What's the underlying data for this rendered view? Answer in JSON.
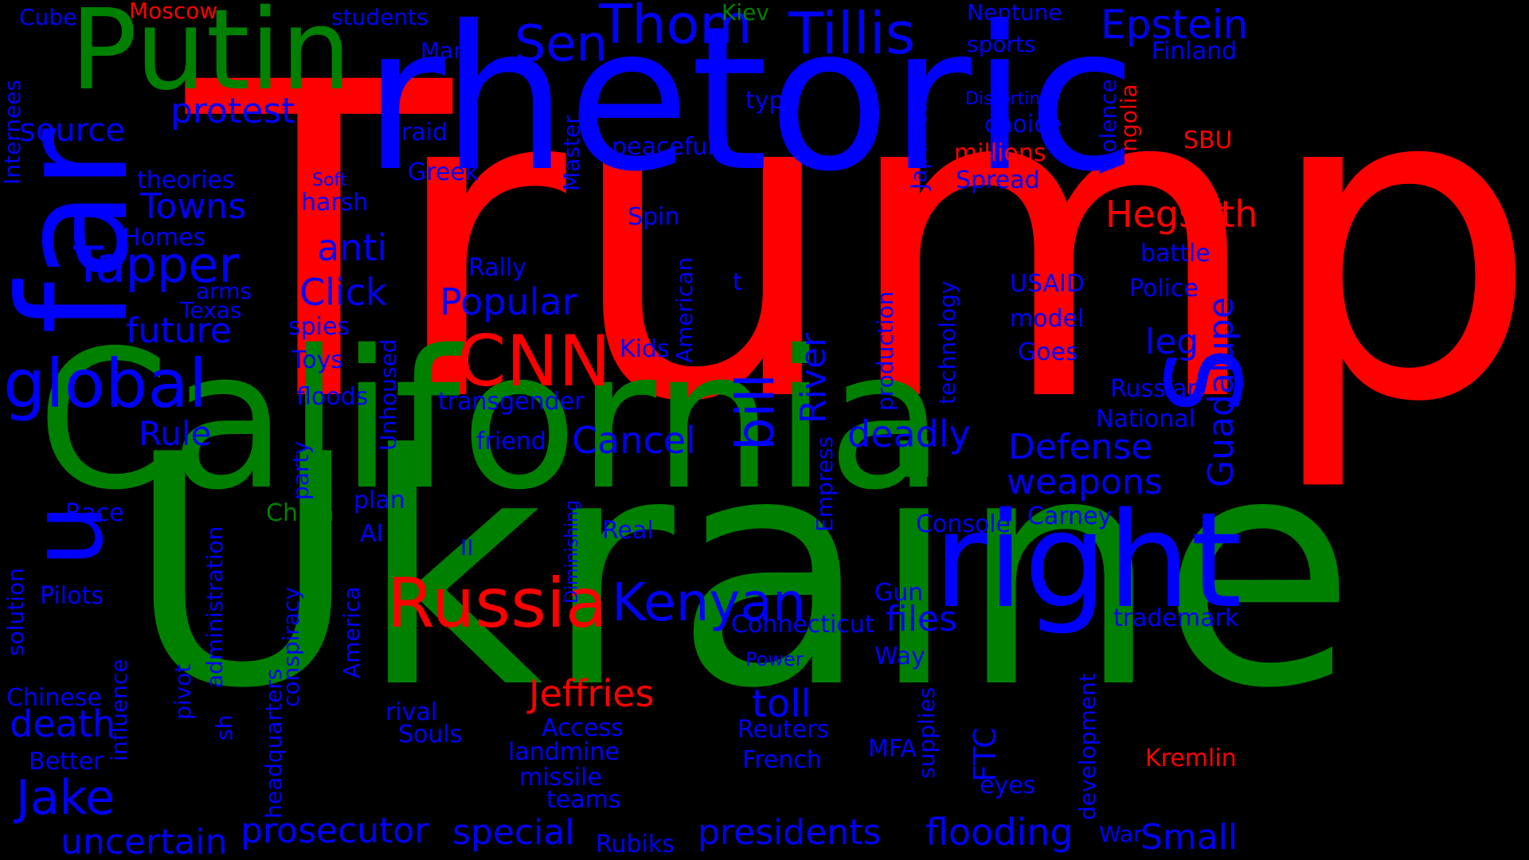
{
  "colors": {
    "background": "#000000",
    "red": "#ff0000",
    "green": "#008000",
    "blue": "#0000ff"
  },
  "words": {
    "trump": "Trump",
    "ukraine": "Ukraine",
    "california": "California",
    "rhetoric": "rhetoric",
    "putin": "Putin",
    "far": "far",
    "u": "u",
    "right": "right",
    "s": "S",
    "cnn": "CNN",
    "russia": "Russia",
    "kenyan": "Kenyan",
    "global": "global",
    "tapper": "Tapper",
    "bill": "bill",
    "tillis": "Tillis",
    "thom": "Thom",
    "sen": "Sen",
    "epstein": "Epstein",
    "hegseth": "Hegseth",
    "jeffries": "Jeffries",
    "prosecutor": "prosecutor",
    "special": "special",
    "presidents": "presidents",
    "flooding": "flooding",
    "small": "Small",
    "uncertain": "uncertain",
    "jake": "Jake",
    "death": "death",
    "toll": "toll",
    "files": "files",
    "deadly": "deadly",
    "defense": "Defense",
    "weapons": "weapons",
    "guadalupe": "Guadalupe",
    "river": "River",
    "cancel": "Cancel",
    "popular": "Popular",
    "click": "Click",
    "anti": "anti",
    "towns": "Towns",
    "future": "future",
    "rule": "Rule",
    "protest": "protest",
    "source": "source",
    "leg": "leg",
    "moscow": "Moscow",
    "cube": "Cube",
    "students": "students",
    "kiev": "Kiev",
    "neptune": "Neptune",
    "sports": "sports",
    "finland": "Finland",
    "mark": "Mark",
    "raid": "raid",
    "greek": "Greek",
    "peaceful": "peaceful",
    "type": "type",
    "choice": "choice",
    "distorting": "Distorting",
    "millions": "millions",
    "spread": "Spread",
    "sbu": "SBU",
    "mongolia": "Mongolia",
    "violence": "Violence",
    "japanese": "Japanese",
    "master": "Master",
    "internees": "Internees",
    "theories": "theories",
    "soft": "Soft",
    "harsh": "harsh",
    "homes": "Homes",
    "spin": "Spin",
    "rally": "Rally",
    "arms": "arms",
    "texas": "Texas",
    "spies": "spies",
    "toys": "Toys",
    "floods": "floods",
    "kids": "Kids",
    "american": "American",
    "transgender": "transgender",
    "t": "t",
    "production": "production",
    "technology": "technology",
    "usaid": "USAID",
    "model": "model",
    "goes": "Goes",
    "battle": "battle",
    "police": "Police",
    "russian": "Russian",
    "national": "National",
    "friend": "friend",
    "unhoused": "Unhoused",
    "party": "party",
    "race": "Race",
    "china": "China",
    "plan": "plan",
    "ai": "AI",
    "ii": "II",
    "real": "Real",
    "diminishing": "Diminishing",
    "empress": "Empress",
    "console": "Console",
    "carney": "Carney",
    "administration": "administration",
    "solution": "solution",
    "pilots": "Pilots",
    "connecticut": "Connecticut",
    "gun": "Gun",
    "trademark": "trademark",
    "conspiracy": "conspiracy",
    "america": "America",
    "chinese": "Chinese",
    "influence": "influence",
    "pivot": "pivot",
    "headquarters": "headquarters",
    "sh": "sh",
    "power": "Power",
    "way": "Way",
    "rival": "rival",
    "access": "Access",
    "souls": "Souls",
    "reuters": "Reuters",
    "landmine": "landmine",
    "missile": "missile",
    "teams": "teams",
    "french": "French",
    "mfa": "MFA",
    "ftc": "FTC",
    "supplies": "supplies",
    "development": "development",
    "eyes": "eyes",
    "kremlin": "Kremlin",
    "better": "Better",
    "rubiks": "Rubiks",
    "war": "War"
  }
}
